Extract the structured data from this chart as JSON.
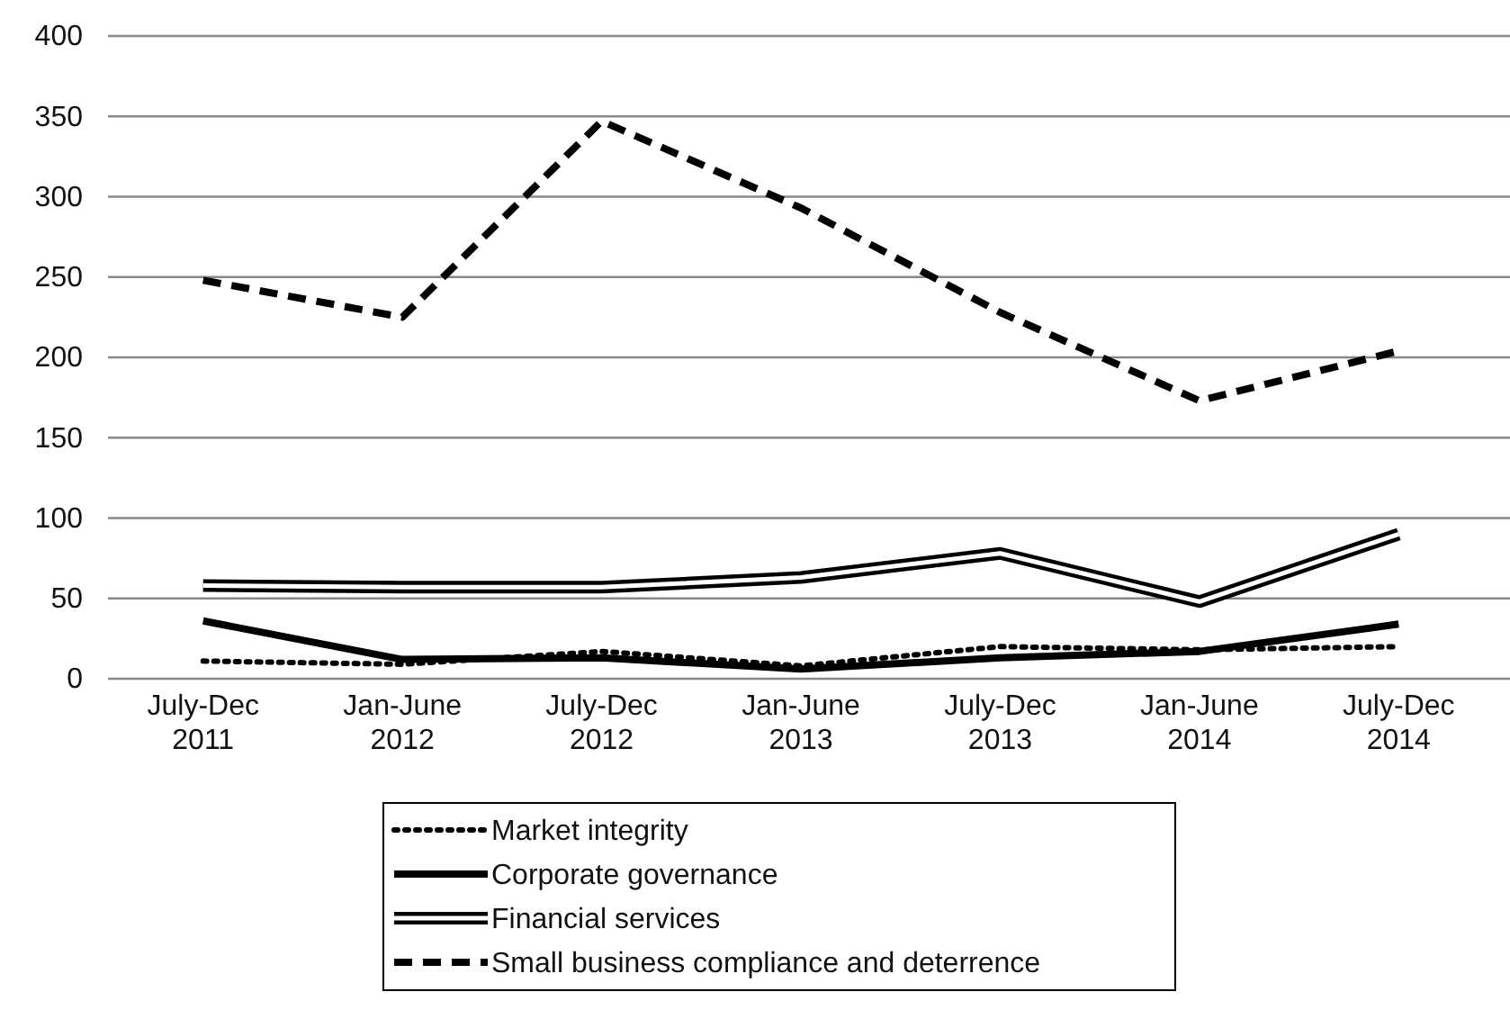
{
  "chart_data": {
    "type": "line",
    "categories": [
      "July-Dec\n2011",
      "Jan-June\n2012",
      "July-Dec\n2012",
      "Jan-June\n2013",
      "July-Dec\n2013",
      "Jan-June\n2014",
      "July-Dec\n2014"
    ],
    "series": [
      {
        "name": "Market integrity",
        "color": "#000000",
        "line_style": "dotted",
        "values": [
          11,
          9,
          17,
          8,
          20,
          18,
          20
        ]
      },
      {
        "name": "Corporate governance",
        "color": "#000000",
        "line_style": "solid",
        "values": [
          36,
          12,
          13,
          6,
          13,
          17,
          34
        ]
      },
      {
        "name": "Financial services",
        "color": "#000000",
        "line_style": "solid",
        "values": [
          58,
          57,
          57,
          63,
          78,
          48,
          90
        ]
      },
      {
        "name": "Small business compliance and deterrence",
        "color": "#000000",
        "line_style": "dashed",
        "values": [
          248,
          225,
          347,
          293,
          228,
          173,
          204
        ]
      }
    ],
    "ylim": [
      0,
      400
    ],
    "yticks": [
      0,
      50,
      100,
      150,
      200,
      250,
      300,
      350,
      400
    ],
    "grid": "y",
    "legend": "bottom",
    "marker": "none"
  }
}
